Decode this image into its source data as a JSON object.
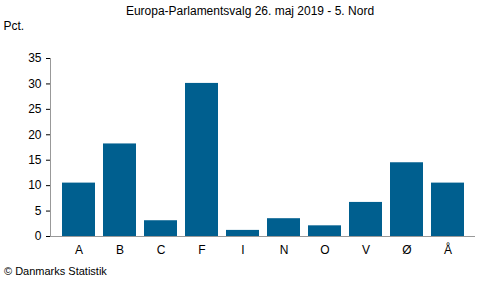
{
  "chart_data": {
    "type": "bar",
    "title": "Europa-Parlamentsvalg 26. maj 2019 - 5. Nord",
    "y_label": "Pct.",
    "caption": "© Danmarks Statistik",
    "categories": [
      "A",
      "B",
      "C",
      "F",
      "I",
      "N",
      "O",
      "V",
      "Ø",
      "Å"
    ],
    "values": [
      10.5,
      18.2,
      3.1,
      30.1,
      1.2,
      3.5,
      2.1,
      6.7,
      14.5,
      10.5
    ],
    "color": "#005f8f",
    "ylim": [
      0,
      35
    ],
    "yticks": [
      0,
      5,
      10,
      15,
      20,
      25,
      30,
      35
    ],
    "grid": false
  }
}
